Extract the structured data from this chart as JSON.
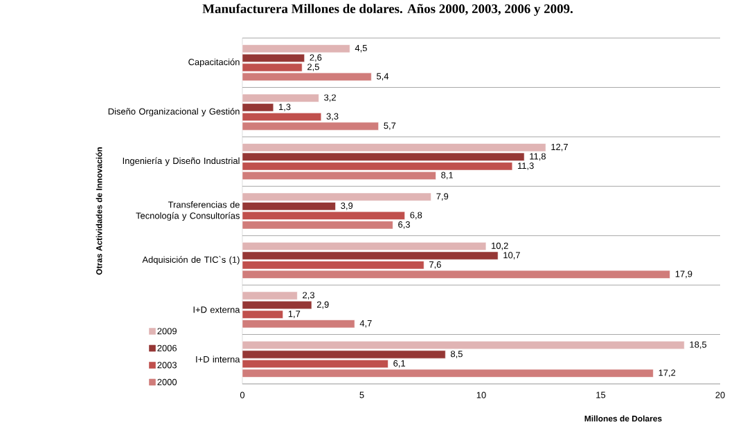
{
  "chart_data": {
    "type": "bar",
    "orientation": "horizontal",
    "title": "Manufacturera Millones de dolares. Años 2000, 2003, 2006 y 2009.",
    "xlabel": "Millones de Dolares",
    "ylabel": "Otras Actividades de Innovación",
    "categories": [
      "Capacitación",
      "Diseño Organizacional y Gestión",
      "Ingeniería y Diseño Industrial",
      "Transferencias de Tecnología y Consultorías",
      "Adquisición de TIC`s (1)",
      "I+D externa",
      "I+D interna"
    ],
    "series": [
      {
        "name": "2009",
        "color": "#e0b4b4",
        "values": [
          4.5,
          3.2,
          12.7,
          7.9,
          10.2,
          2.3,
          18.5
        ],
        "value_labels": [
          "4,5",
          "3,2",
          "12,7",
          "7,9",
          "10,2",
          "2,3",
          "18,5"
        ]
      },
      {
        "name": "2006",
        "color": "#953735",
        "values": [
          2.6,
          1.3,
          11.8,
          3.9,
          10.7,
          2.9,
          8.5
        ],
        "value_labels": [
          "2,6",
          "1,3",
          "11,8",
          "3,9",
          "10,7",
          "2,9",
          "8,5"
        ]
      },
      {
        "name": "2003",
        "color": "#c0504d",
        "values": [
          2.5,
          3.3,
          11.3,
          6.8,
          7.6,
          1.7,
          6.1
        ],
        "value_labels": [
          "2,5",
          "3,3",
          "11,3",
          "6,8",
          "7,6",
          "1,7",
          "6,1"
        ]
      },
      {
        "name": "2000",
        "color": "#d07c7a",
        "values": [
          5.4,
          5.7,
          8.1,
          6.3,
          17.9,
          4.7,
          17.2
        ],
        "value_labels": [
          "5,4",
          "5,7",
          "8,1",
          "6,3",
          "17,9",
          "4,7",
          "17,2"
        ]
      }
    ],
    "xlim": [
      0,
      20
    ],
    "xticks": [
      0,
      5,
      10,
      15,
      20
    ],
    "grid": "y",
    "legend": "bottom left"
  }
}
